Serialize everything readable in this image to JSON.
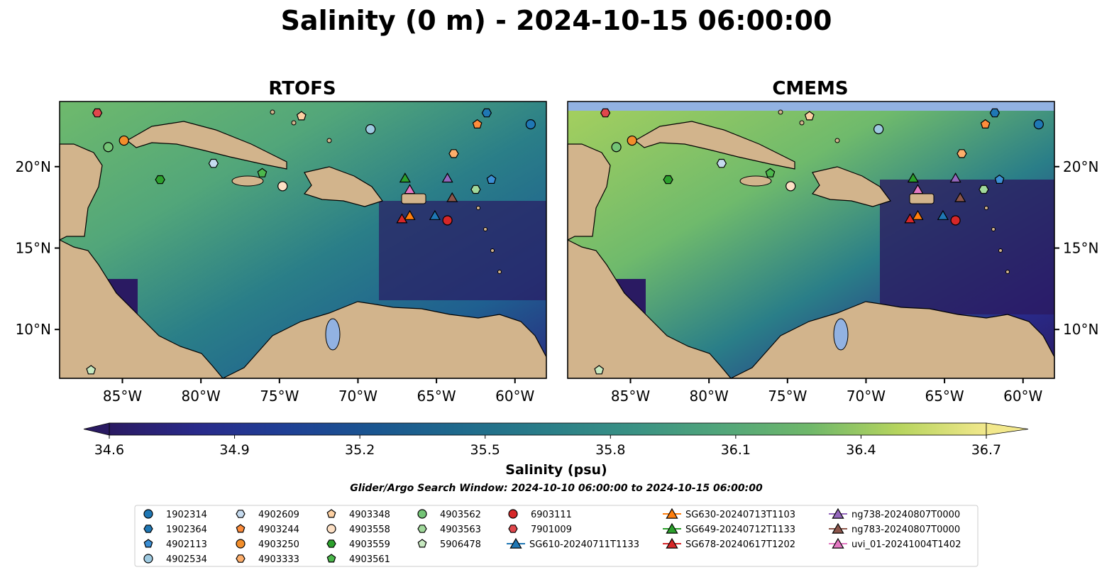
{
  "title": "Salinity (0 m) - 2024-10-15 06:00:00",
  "panels": [
    {
      "title": "RTOFS",
      "lon_ticks": [
        "85°W",
        "80°W",
        "75°W",
        "70°W",
        "65°W",
        "60°W"
      ],
      "lat_ticks": [
        "20°N",
        "15°N",
        "10°N"
      ]
    },
    {
      "title": "CMEMS",
      "lon_ticks": [
        "85°W",
        "80°W",
        "75°W",
        "70°W",
        "65°W",
        "60°W"
      ],
      "lat_ticks": [
        "20°N",
        "15°N",
        "10°N"
      ]
    }
  ],
  "map_extent": {
    "lon_min": -89,
    "lon_max": -58,
    "lat_min": 7,
    "lat_max": 24
  },
  "colorbar": {
    "label": "Salinity (psu)",
    "ticks": [
      "34.6",
      "34.9",
      "35.2",
      "35.5",
      "35.8",
      "36.1",
      "36.4",
      "36.7"
    ],
    "vmin": 34.6,
    "vmax": 36.7,
    "colormap": "haline",
    "colors": [
      "#2a1a62",
      "#292a8a",
      "#1f3f95",
      "#1a5590",
      "#1f6a8c",
      "#2a7e88",
      "#3a9284",
      "#52a67a",
      "#70b86a",
      "#96c85e",
      "#c6d862",
      "#f2e88c"
    ]
  },
  "search_window": "Glider/Argo Search Window: 2024-10-10 06:00:00 to 2024-10-15 06:00:00",
  "colors": {
    "land": "#d2b48c",
    "ocean_low": "#2a1a62",
    "lake": "#92b2e2",
    "cmems_nodata": "#92b2e2"
  },
  "legend": {
    "columns": [
      [
        {
          "label": "1902314",
          "marker": "circle",
          "color": "#1f77b4"
        },
        {
          "label": "1902364",
          "marker": "hexagon",
          "color": "#1f77b4"
        },
        {
          "label": "4902113",
          "marker": "pentagon",
          "color": "#3b8ed4"
        },
        {
          "label": "4902534",
          "marker": "circle",
          "color": "#9ecae1"
        }
      ],
      [
        {
          "label": "4902609",
          "marker": "hexagon",
          "color": "#c6dbef"
        },
        {
          "label": "4903244",
          "marker": "pentagon",
          "color": "#fd8d3c"
        },
        {
          "label": "4903250",
          "marker": "circle",
          "color": "#f28e2b"
        },
        {
          "label": "4903333",
          "marker": "hexagon",
          "color": "#fdae6b"
        }
      ],
      [
        {
          "label": "4903348",
          "marker": "pentagon",
          "color": "#fdd0a2"
        },
        {
          "label": "4903558",
          "marker": "circle",
          "color": "#fde0c5"
        },
        {
          "label": "4903559",
          "marker": "hexagon",
          "color": "#2ca02c"
        },
        {
          "label": "4903561",
          "marker": "pentagon",
          "color": "#4cb84c"
        }
      ],
      [
        {
          "label": "4903562",
          "marker": "circle",
          "color": "#74c476"
        },
        {
          "label": "4903563",
          "marker": "hexagon",
          "color": "#a1d99b"
        },
        {
          "label": "5906478",
          "marker": "pentagon",
          "color": "#c7e9c0"
        }
      ],
      [
        {
          "label": "6903111",
          "marker": "circle",
          "color": "#d62728"
        },
        {
          "label": "7901009",
          "marker": "hexagon",
          "color": "#e0474c"
        },
        {
          "label": "SG610-20240711T1133",
          "marker": "triangle",
          "color": "#1f77b4",
          "line": true
        }
      ],
      [
        {
          "label": "SG630-20240713T1103",
          "marker": "triangle",
          "color": "#ff7f0e",
          "line": true
        },
        {
          "label": "SG649-20240712T1133",
          "marker": "triangle",
          "color": "#2ca02c",
          "line": true
        },
        {
          "label": "SG678-20240617T1202",
          "marker": "triangle",
          "color": "#d62728",
          "line": true
        }
      ],
      [
        {
          "label": "ng738-20240807T0000",
          "marker": "triangle",
          "color": "#9467bd",
          "line": true
        },
        {
          "label": "ng783-20240807T0000",
          "marker": "triangle",
          "color": "#8c564b",
          "line": true
        },
        {
          "label": "uvi_01-20241004T1402",
          "marker": "triangle",
          "color": "#e377c2",
          "line": true
        }
      ]
    ]
  },
  "markers": [
    {
      "id": "1902314",
      "lon": -59.0,
      "lat": 22.6
    },
    {
      "id": "1902364",
      "lon": -61.8,
      "lat": 23.3
    },
    {
      "id": "4902113",
      "lon": -61.5,
      "lat": 19.2
    },
    {
      "id": "4902534",
      "lon": -69.2,
      "lat": 22.3
    },
    {
      "id": "4902609",
      "lon": -79.2,
      "lat": 20.2
    },
    {
      "id": "4903244",
      "lon": -62.4,
      "lat": 22.6
    },
    {
      "id": "4903250",
      "lon": -84.9,
      "lat": 21.6
    },
    {
      "id": "4903333",
      "lon": -63.9,
      "lat": 20.8
    },
    {
      "id": "4903348",
      "lon": -73.6,
      "lat": 23.1
    },
    {
      "id": "4903558",
      "lon": -74.8,
      "lat": 18.8
    },
    {
      "id": "4903559",
      "lon": -82.6,
      "lat": 19.2
    },
    {
      "id": "4903561",
      "lon": -76.1,
      "lat": 19.6
    },
    {
      "id": "4903562",
      "lon": -85.9,
      "lat": 21.2
    },
    {
      "id": "4903563",
      "lon": -62.5,
      "lat": 18.6
    },
    {
      "id": "5906478",
      "lon": -87.0,
      "lat": 7.5
    },
    {
      "id": "6903111",
      "lon": -64.3,
      "lat": 16.7
    },
    {
      "id": "7901009",
      "lon": -86.6,
      "lat": 23.3
    },
    {
      "id": "SG610-20240711T1133",
      "lon": -65.1,
      "lat": 17.0
    },
    {
      "id": "SG630-20240713T1103",
      "lon": -66.7,
      "lat": 17.0
    },
    {
      "id": "SG649-20240712T1133",
      "lon": -67.0,
      "lat": 19.3
    },
    {
      "id": "SG678-20240617T1202",
      "lon": -67.2,
      "lat": 16.8
    },
    {
      "id": "ng738-20240807T0000",
      "lon": -64.3,
      "lat": 19.3
    },
    {
      "id": "ng783-20240807T0000",
      "lon": -64.0,
      "lat": 18.1
    },
    {
      "id": "uvi_01-20241004T1402",
      "lon": -66.7,
      "lat": 18.6
    }
  ]
}
